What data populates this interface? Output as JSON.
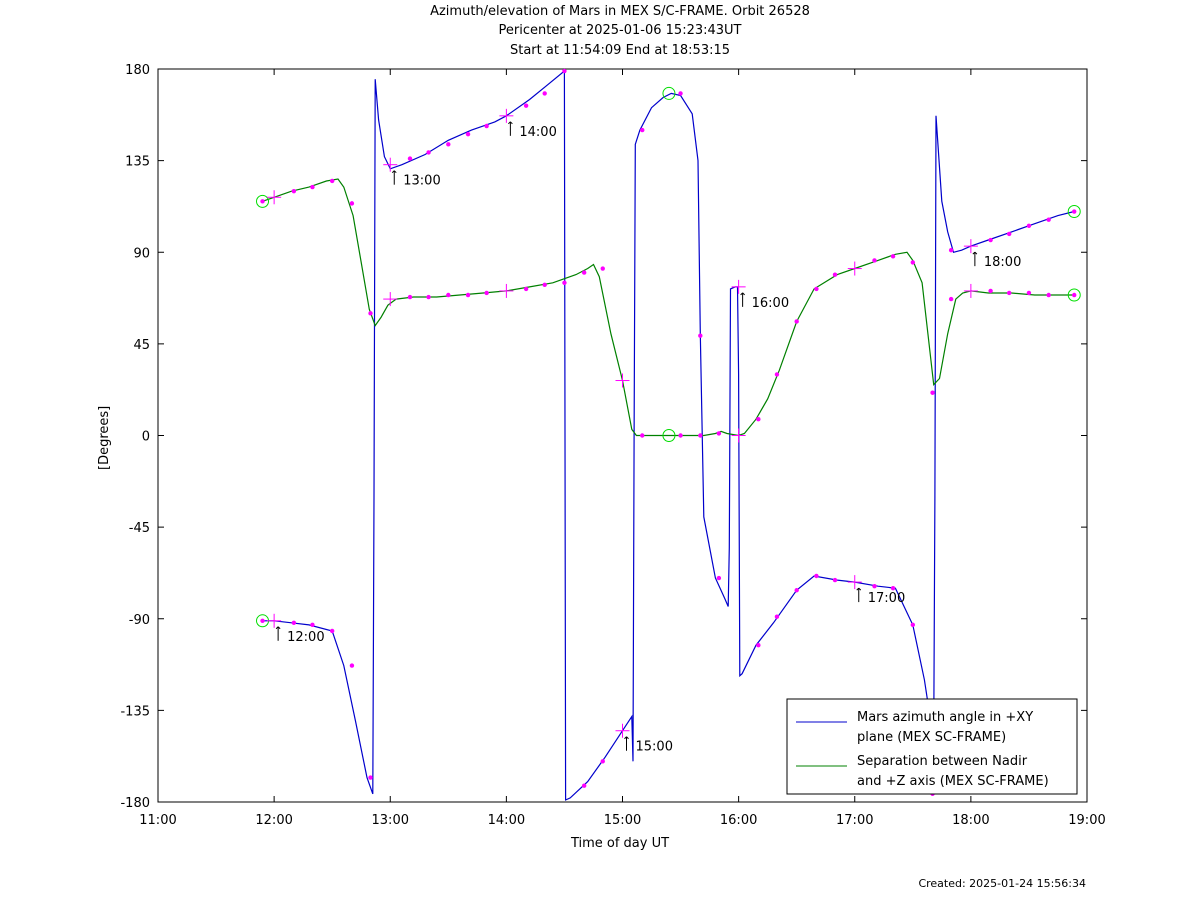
{
  "title_lines": [
    "Azimuth/elevation of Mars in MEX S/C-FRAME.  Orbit 26528",
    "Pericenter at 2025-01-06 15:23:43UT",
    "Start at 11:54:09 End at 18:53:15"
  ],
  "created": "Created: 2025-01-24 15:56:34",
  "chart_data": {
    "type": "line",
    "xlabel": "Time of day UT",
    "ylabel": "[Degrees]",
    "xlim": [
      11.0,
      19.0
    ],
    "ylim": [
      -180,
      180
    ],
    "x_ticks": [
      11,
      12,
      13,
      14,
      15,
      16,
      17,
      18,
      19
    ],
    "x_tick_labels": [
      "11:00",
      "12:00",
      "13:00",
      "14:00",
      "15:00",
      "16:00",
      "17:00",
      "18:00",
      "19:00"
    ],
    "y_ticks": [
      180,
      135,
      90,
      45,
      0,
      -45,
      -90,
      -135,
      -180
    ],
    "y_tick_labels": [
      "180",
      "135",
      "90",
      "45",
      "0",
      "-45",
      "-90",
      "-135",
      "-180"
    ],
    "grid": false,
    "legend_position": "bottom-right",
    "series": [
      {
        "name": "Mars azimuth angle in +XY plane (MEX SC-FRAME)",
        "legend_lines": [
          "Mars azimuth angle in +XY",
          "plane (MEX SC-FRAME)"
        ],
        "color": "#0000cc",
        "points": [
          [
            11.9,
            -91
          ],
          [
            12.0,
            -91
          ],
          [
            12.15,
            -92
          ],
          [
            12.3,
            -93
          ],
          [
            12.5,
            -96
          ],
          [
            12.6,
            -113
          ],
          [
            12.7,
            -140
          ],
          [
            12.8,
            -168
          ],
          [
            12.85,
            -176
          ],
          [
            12.86,
            -30
          ],
          [
            12.87,
            175
          ],
          [
            12.9,
            155
          ],
          [
            12.95,
            137
          ],
          [
            13.0,
            131
          ],
          [
            13.1,
            133
          ],
          [
            13.3,
            138
          ],
          [
            13.5,
            145
          ],
          [
            13.7,
            150
          ],
          [
            13.9,
            154
          ],
          [
            14.0,
            157
          ],
          [
            14.2,
            165
          ],
          [
            14.35,
            172
          ],
          [
            14.5,
            179
          ],
          [
            14.51,
            -179
          ],
          [
            14.55,
            -178
          ],
          [
            14.7,
            -170
          ],
          [
            14.85,
            -158
          ],
          [
            15.0,
            -145
          ],
          [
            15.08,
            -138
          ],
          [
            15.09,
            -160
          ],
          [
            15.1,
            0
          ],
          [
            15.11,
            143
          ],
          [
            15.15,
            150
          ],
          [
            15.25,
            161
          ],
          [
            15.35,
            166
          ],
          [
            15.42,
            168
          ],
          [
            15.5,
            167
          ],
          [
            15.6,
            158
          ],
          [
            15.65,
            135
          ],
          [
            15.67,
            50
          ],
          [
            15.7,
            -40
          ],
          [
            15.8,
            -70
          ],
          [
            15.88,
            -80
          ],
          [
            15.91,
            -84
          ],
          [
            15.92,
            -55
          ],
          [
            15.93,
            72
          ],
          [
            15.97,
            73
          ],
          [
            15.99,
            73
          ],
          [
            16.0,
            30
          ],
          [
            16.01,
            -118
          ],
          [
            16.03,
            -117
          ],
          [
            16.15,
            -103
          ],
          [
            16.3,
            -92
          ],
          [
            16.5,
            -76
          ],
          [
            16.65,
            -69
          ],
          [
            16.85,
            -71
          ],
          [
            17.0,
            -72
          ],
          [
            17.2,
            -74
          ],
          [
            17.35,
            -75
          ],
          [
            17.5,
            -93
          ],
          [
            17.6,
            -120
          ],
          [
            17.68,
            -150
          ],
          [
            17.69,
            -30
          ],
          [
            17.7,
            157
          ],
          [
            17.75,
            115
          ],
          [
            17.8,
            100
          ],
          [
            17.85,
            90
          ],
          [
            17.92,
            91
          ],
          [
            18.0,
            93
          ],
          [
            18.15,
            96
          ],
          [
            18.35,
            100
          ],
          [
            18.55,
            104
          ],
          [
            18.75,
            108
          ],
          [
            18.89,
            110
          ]
        ]
      },
      {
        "name": "Separation between Nadir and +Z axis (MEX SC-FRAME)",
        "legend_lines": [
          "Separation between Nadir",
          "and +Z axis (MEX SC-FRAME)"
        ],
        "color": "#008000",
        "points": [
          [
            11.9,
            115
          ],
          [
            12.0,
            117
          ],
          [
            12.15,
            120
          ],
          [
            12.3,
            122
          ],
          [
            12.45,
            125
          ],
          [
            12.55,
            126
          ],
          [
            12.6,
            122
          ],
          [
            12.68,
            108
          ],
          [
            12.75,
            85
          ],
          [
            12.82,
            62
          ],
          [
            12.87,
            54
          ],
          [
            12.92,
            58
          ],
          [
            12.98,
            64
          ],
          [
            13.05,
            67
          ],
          [
            13.2,
            68
          ],
          [
            13.4,
            68
          ],
          [
            13.6,
            69
          ],
          [
            13.8,
            70
          ],
          [
            14.0,
            71
          ],
          [
            14.2,
            73
          ],
          [
            14.4,
            75
          ],
          [
            14.6,
            79
          ],
          [
            14.7,
            82
          ],
          [
            14.75,
            84
          ],
          [
            14.8,
            78
          ],
          [
            14.9,
            50
          ],
          [
            15.0,
            27
          ],
          [
            15.08,
            3
          ],
          [
            15.12,
            0
          ],
          [
            15.3,
            0
          ],
          [
            15.5,
            0
          ],
          [
            15.7,
            0
          ],
          [
            15.8,
            1
          ],
          [
            15.85,
            2
          ],
          [
            15.9,
            1
          ],
          [
            16.0,
            0
          ],
          [
            16.05,
            1
          ],
          [
            16.15,
            8
          ],
          [
            16.25,
            18
          ],
          [
            16.35,
            32
          ],
          [
            16.5,
            56
          ],
          [
            16.65,
            72
          ],
          [
            16.85,
            79
          ],
          [
            17.0,
            82
          ],
          [
            17.2,
            86
          ],
          [
            17.35,
            89
          ],
          [
            17.45,
            90
          ],
          [
            17.5,
            86
          ],
          [
            17.58,
            75
          ],
          [
            17.63,
            50
          ],
          [
            17.68,
            25
          ],
          [
            17.73,
            28
          ],
          [
            17.8,
            50
          ],
          [
            17.87,
            67
          ],
          [
            17.93,
            70
          ],
          [
            18.0,
            71
          ],
          [
            18.15,
            70
          ],
          [
            18.35,
            70
          ],
          [
            18.55,
            69
          ],
          [
            18.75,
            69
          ],
          [
            18.89,
            69
          ]
        ]
      }
    ],
    "dot_markers": [
      [
        11.9,
        -91
      ],
      [
        12.17,
        -92
      ],
      [
        12.33,
        -93
      ],
      [
        12.5,
        -96
      ],
      [
        12.67,
        -113
      ],
      [
        12.83,
        -168
      ],
      [
        13.17,
        136
      ],
      [
        13.33,
        139
      ],
      [
        13.5,
        143
      ],
      [
        13.67,
        148
      ],
      [
        13.83,
        152
      ],
      [
        14.17,
        162
      ],
      [
        14.33,
        168
      ],
      [
        14.5,
        179
      ],
      [
        14.67,
        -172
      ],
      [
        14.83,
        -160
      ],
      [
        15.17,
        150
      ],
      [
        15.5,
        168
      ],
      [
        15.67,
        49
      ],
      [
        15.83,
        -70
      ],
      [
        16.17,
        -103
      ],
      [
        16.33,
        -89
      ],
      [
        16.5,
        -76
      ],
      [
        16.67,
        -69
      ],
      [
        16.83,
        -71
      ],
      [
        17.17,
        -74
      ],
      [
        17.33,
        -75
      ],
      [
        17.5,
        -93
      ],
      [
        17.67,
        -176
      ],
      [
        17.83,
        91
      ],
      [
        18.17,
        96
      ],
      [
        18.33,
        99
      ],
      [
        18.5,
        103
      ],
      [
        18.67,
        106
      ],
      [
        18.89,
        110
      ],
      [
        11.9,
        115
      ],
      [
        12.17,
        120
      ],
      [
        12.33,
        122
      ],
      [
        12.5,
        125
      ],
      [
        12.67,
        114
      ],
      [
        12.83,
        60
      ],
      [
        13.17,
        68
      ],
      [
        13.33,
        68
      ],
      [
        13.5,
        69
      ],
      [
        13.67,
        69
      ],
      [
        13.83,
        70
      ],
      [
        14.17,
        72
      ],
      [
        14.33,
        74
      ],
      [
        14.5,
        75
      ],
      [
        14.67,
        80
      ],
      [
        14.83,
        82
      ],
      [
        15.17,
        0
      ],
      [
        15.5,
        0
      ],
      [
        15.67,
        0
      ],
      [
        15.83,
        1
      ],
      [
        16.17,
        8
      ],
      [
        16.33,
        30
      ],
      [
        16.5,
        56
      ],
      [
        16.67,
        72
      ],
      [
        16.83,
        79
      ],
      [
        17.17,
        86
      ],
      [
        17.33,
        88
      ],
      [
        17.5,
        85
      ],
      [
        17.67,
        21
      ],
      [
        17.83,
        67
      ],
      [
        18.17,
        71
      ],
      [
        18.33,
        70
      ],
      [
        18.5,
        70
      ],
      [
        18.67,
        69
      ],
      [
        18.89,
        69
      ]
    ],
    "circle_markers": [
      [
        11.9,
        -91
      ],
      [
        11.9,
        115
      ],
      [
        15.4,
        168
      ],
      [
        15.4,
        0
      ],
      [
        18.89,
        110
      ],
      [
        18.89,
        69
      ]
    ],
    "cross_markers": [
      [
        12.0,
        -91
      ],
      [
        12.0,
        117
      ],
      [
        13.0,
        133
      ],
      [
        13.0,
        67
      ],
      [
        14.0,
        157
      ],
      [
        14.0,
        71
      ],
      [
        15.0,
        -145
      ],
      [
        15.0,
        27
      ],
      [
        16.0,
        73
      ],
      [
        16.0,
        0
      ],
      [
        17.0,
        -72
      ],
      [
        17.0,
        82
      ],
      [
        18.0,
        93
      ],
      [
        18.0,
        71
      ]
    ],
    "annotations": [
      {
        "text": "12:00",
        "x": 12.0,
        "y": -91
      },
      {
        "text": "13:00",
        "x": 13.0,
        "y": 133
      },
      {
        "text": "14:00",
        "x": 14.0,
        "y": 157
      },
      {
        "text": "15:00",
        "x": 15.0,
        "y": -145
      },
      {
        "text": "16:00",
        "x": 16.0,
        "y": 73
      },
      {
        "text": "17:00",
        "x": 17.0,
        "y": -72
      },
      {
        "text": "18:00",
        "x": 18.0,
        "y": 93
      }
    ]
  }
}
